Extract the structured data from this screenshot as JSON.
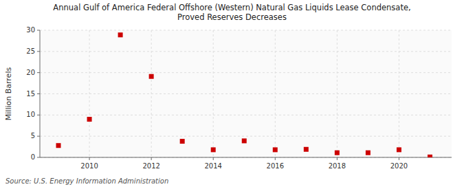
{
  "chart_data": {
    "type": "scatter",
    "title": "Annual Gulf of America Federal Offshore (Western) Natural Gas Liquids Lease Condensate,\nProved Reserves Decreases",
    "y_label": "Million Barrels",
    "annotation": "Source: U.S. Energy Information Administration",
    "x": [
      2009,
      2010,
      2011,
      2012,
      2013,
      2014,
      2015,
      2016,
      2017,
      2018,
      2019,
      2020,
      2021
    ],
    "values": [
      2.8,
      9.0,
      28.9,
      19.1,
      3.8,
      1.8,
      3.9,
      1.8,
      1.9,
      1.1,
      1.1,
      1.8,
      0.1
    ],
    "color": "#cc0000",
    "marker": "square",
    "xlim": [
      2008.4,
      2021.7
    ],
    "ylim": [
      0,
      30
    ],
    "xticks": [
      2010,
      2012,
      2014,
      2016,
      2018,
      2020
    ],
    "yticks": [
      0,
      5,
      10,
      15,
      20,
      25,
      30
    ],
    "grid": true
  }
}
